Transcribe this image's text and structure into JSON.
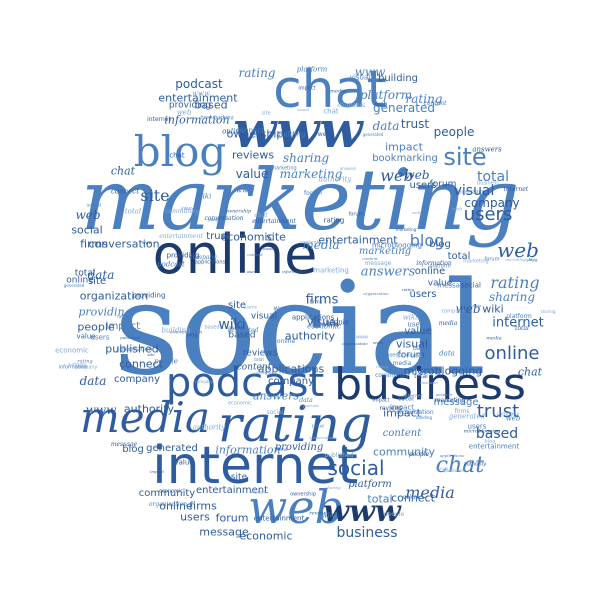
{
  "colors": {
    "background": "#ffffff",
    "navy": "#1d3a6e",
    "blue": "#2f5c9e",
    "mid": "#4a7fc0",
    "light": "#7fa8d8"
  },
  "words": {
    "social": "social",
    "marketing": "marketing",
    "online": "online",
    "business": "business",
    "internet": "internet",
    "rating": "rating",
    "media": "media",
    "podcast": "podcast",
    "www": "www",
    "chat": "chat",
    "blog": "blog",
    "web": "web",
    "site": "site",
    "users": "users",
    "wiki": "wiki",
    "firms": "firms",
    "forum": "forum",
    "trust": "trust",
    "answers": "answers",
    "content": "content",
    "total": "total",
    "platform": "platform",
    "data": "data",
    "based": "based",
    "impact": "impact",
    "people": "people",
    "visual": "visual",
    "value": "value",
    "company": "company",
    "sharing": "sharing",
    "reviews": "reviews",
    "authority": "authority",
    "published": "published",
    "connect": "connect",
    "message": "message",
    "economic": "economic",
    "community": "community",
    "conversation": "conversation",
    "providing": "providing",
    "organization": "organization",
    "applications": "applications",
    "entertainment": "entertainment",
    "information": "information",
    "bookmarking": "bookmarking",
    "microblogging": "microblogging",
    "building": "building",
    "generated": "generated",
    "ownership": "ownership"
  }
}
